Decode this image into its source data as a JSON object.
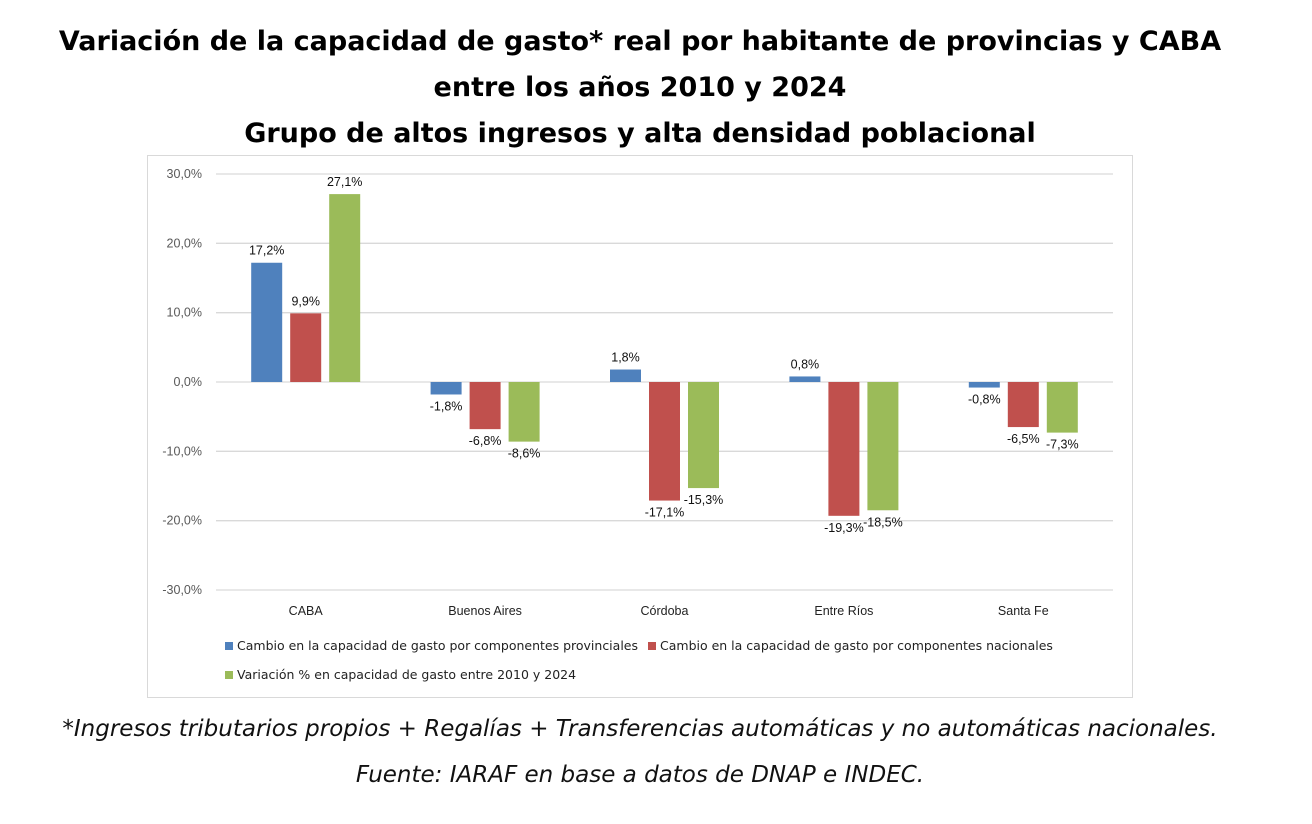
{
  "title_lines": [
    "Variación de la capacidad de gasto* real por habitante de provincias y CABA",
    "entre los años 2010 y 2024",
    "Grupo de altos ingresos y alta densidad poblacional"
  ],
  "footnote": "*Ingresos tributarios propios + Regalías + Transferencias  automáticas y no automáticas nacionales.",
  "source": "Fuente: IARAF en base a datos de DNAP e INDEC.",
  "chart_data": {
    "type": "bar",
    "categories": [
      "CABA",
      "Buenos Aires",
      "Córdoba",
      "Entre Ríos",
      "Santa Fe"
    ],
    "series": [
      {
        "name": "Cambio en la capacidad de gasto por componentes provinciales",
        "color": "#4f81bd",
        "values": [
          17.2,
          -1.8,
          1.8,
          0.8,
          -0.8
        ],
        "labels": [
          "17,2%",
          "-1,8%",
          "1,8%",
          "0,8%",
          "-0,8%"
        ]
      },
      {
        "name": "Cambio en la capacidad de gasto por componentes nacionales",
        "color": "#c0504d",
        "values": [
          9.9,
          -6.8,
          -17.1,
          -19.3,
          -6.5
        ],
        "labels": [
          "9,9%",
          "-6,8%",
          "-17,1%",
          "-19,3%",
          "-6,5%"
        ]
      },
      {
        "name": "Variación % en capacidad de gasto entre 2010 y 2024",
        "color": "#9bbb59",
        "values": [
          27.1,
          -8.6,
          -15.3,
          -18.5,
          -7.3
        ],
        "labels": [
          "27,1%",
          "-8,6%",
          "-15,3%",
          "-18,5%",
          "-7,3%"
        ]
      }
    ],
    "ylim": [
      -30,
      30
    ],
    "yticks": [
      30,
      20,
      10,
      0,
      -10,
      -20,
      -30
    ],
    "ytick_labels": [
      "30,0%",
      "20,0%",
      "10,0%",
      "0,0%",
      "-10,0%",
      "-20,0%",
      "-30,0%"
    ],
    "grid": true,
    "legend": "bottom"
  }
}
